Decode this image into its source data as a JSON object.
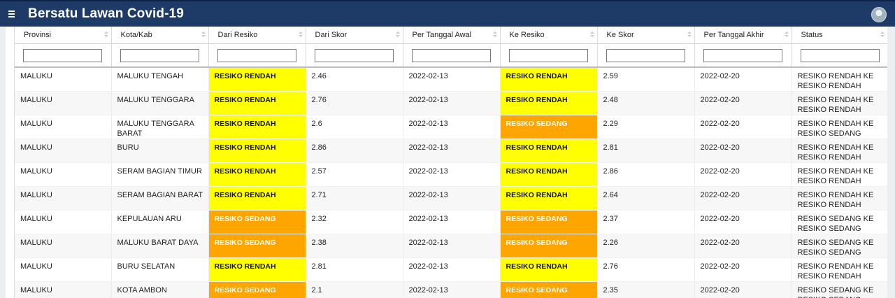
{
  "app": {
    "title": "Bersatu Lawan Covid-19"
  },
  "colors": {
    "topbar": "#1e3a66",
    "rendah": "#ffff00",
    "sedang": "#ffa500"
  },
  "table": {
    "headers": [
      "Provinsi",
      "Kota/Kab",
      "Dari Resiko",
      "Dari Skor",
      "Per Tanggal Awal",
      "Ke Resiko",
      "Ke Skor",
      "Per Tanggal Akhir",
      "Status"
    ],
    "rows": [
      {
        "provinsi": "MALUKU",
        "kota": "MALUKU TENGAH",
        "dari_resiko": "RESIKO RENDAH",
        "dari_skor": "2.46",
        "tgl_awal": "2022-02-13",
        "ke_resiko": "RESIKO RENDAH",
        "ke_skor": "2.59",
        "tgl_akhir": "2022-02-20",
        "status": "RESIKO RENDAH KE RESIKO RENDAH"
      },
      {
        "provinsi": "MALUKU",
        "kota": "MALUKU TENGGARA",
        "dari_resiko": "RESIKO RENDAH",
        "dari_skor": "2.76",
        "tgl_awal": "2022-02-13",
        "ke_resiko": "RESIKO RENDAH",
        "ke_skor": "2.48",
        "tgl_akhir": "2022-02-20",
        "status": "RESIKO RENDAH KE RESIKO RENDAH"
      },
      {
        "provinsi": "MALUKU",
        "kota": "MALUKU TENGGARA BARAT",
        "dari_resiko": "RESIKO RENDAH",
        "dari_skor": "2.6",
        "tgl_awal": "2022-02-13",
        "ke_resiko": "RESIKO SEDANG",
        "ke_skor": "2.29",
        "tgl_akhir": "2022-02-20",
        "status": "RESIKO RENDAH KE RESIKO SEDANG"
      },
      {
        "provinsi": "MALUKU",
        "kota": "BURU",
        "dari_resiko": "RESIKO RENDAH",
        "dari_skor": "2.86",
        "tgl_awal": "2022-02-13",
        "ke_resiko": "RESIKO RENDAH",
        "ke_skor": "2.81",
        "tgl_akhir": "2022-02-20",
        "status": "RESIKO RENDAH KE RESIKO RENDAH"
      },
      {
        "provinsi": "MALUKU",
        "kota": "SERAM BAGIAN TIMUR",
        "dari_resiko": "RESIKO RENDAH",
        "dari_skor": "2.57",
        "tgl_awal": "2022-02-13",
        "ke_resiko": "RESIKO RENDAH",
        "ke_skor": "2.86",
        "tgl_akhir": "2022-02-20",
        "status": "RESIKO RENDAH KE RESIKO RENDAH"
      },
      {
        "provinsi": "MALUKU",
        "kota": "SERAM BAGIAN BARAT",
        "dari_resiko": "RESIKO RENDAH",
        "dari_skor": "2.71",
        "tgl_awal": "2022-02-13",
        "ke_resiko": "RESIKO RENDAH",
        "ke_skor": "2.64",
        "tgl_akhir": "2022-02-20",
        "status": "RESIKO RENDAH KE RESIKO RENDAH"
      },
      {
        "provinsi": "MALUKU",
        "kota": "KEPULAUAN ARU",
        "dari_resiko": "RESIKO SEDANG",
        "dari_skor": "2.32",
        "tgl_awal": "2022-02-13",
        "ke_resiko": "RESIKO SEDANG",
        "ke_skor": "2.37",
        "tgl_akhir": "2022-02-20",
        "status": "RESIKO SEDANG KE RESIKO SEDANG"
      },
      {
        "provinsi": "MALUKU",
        "kota": "MALUKU BARAT DAYA",
        "dari_resiko": "RESIKO SEDANG",
        "dari_skor": "2.38",
        "tgl_awal": "2022-02-13",
        "ke_resiko": "RESIKO SEDANG",
        "ke_skor": "2.26",
        "tgl_akhir": "2022-02-20",
        "status": "RESIKO SEDANG KE RESIKO SEDANG"
      },
      {
        "provinsi": "MALUKU",
        "kota": "BURU SELATAN",
        "dari_resiko": "RESIKO RENDAH",
        "dari_skor": "2.81",
        "tgl_awal": "2022-02-13",
        "ke_resiko": "RESIKO RENDAH",
        "ke_skor": "2.76",
        "tgl_akhir": "2022-02-20",
        "status": "RESIKO RENDAH KE RESIKO RENDAH"
      },
      {
        "provinsi": "MALUKU",
        "kota": "KOTA AMBON",
        "dari_resiko": "RESIKO SEDANG",
        "dari_skor": "2.1",
        "tgl_awal": "2022-02-13",
        "ke_resiko": "RESIKO SEDANG",
        "ke_skor": "2.35",
        "tgl_akhir": "2022-02-20",
        "status": "RESIKO SEDANG KE RESIKO SEDANG"
      }
    ]
  }
}
